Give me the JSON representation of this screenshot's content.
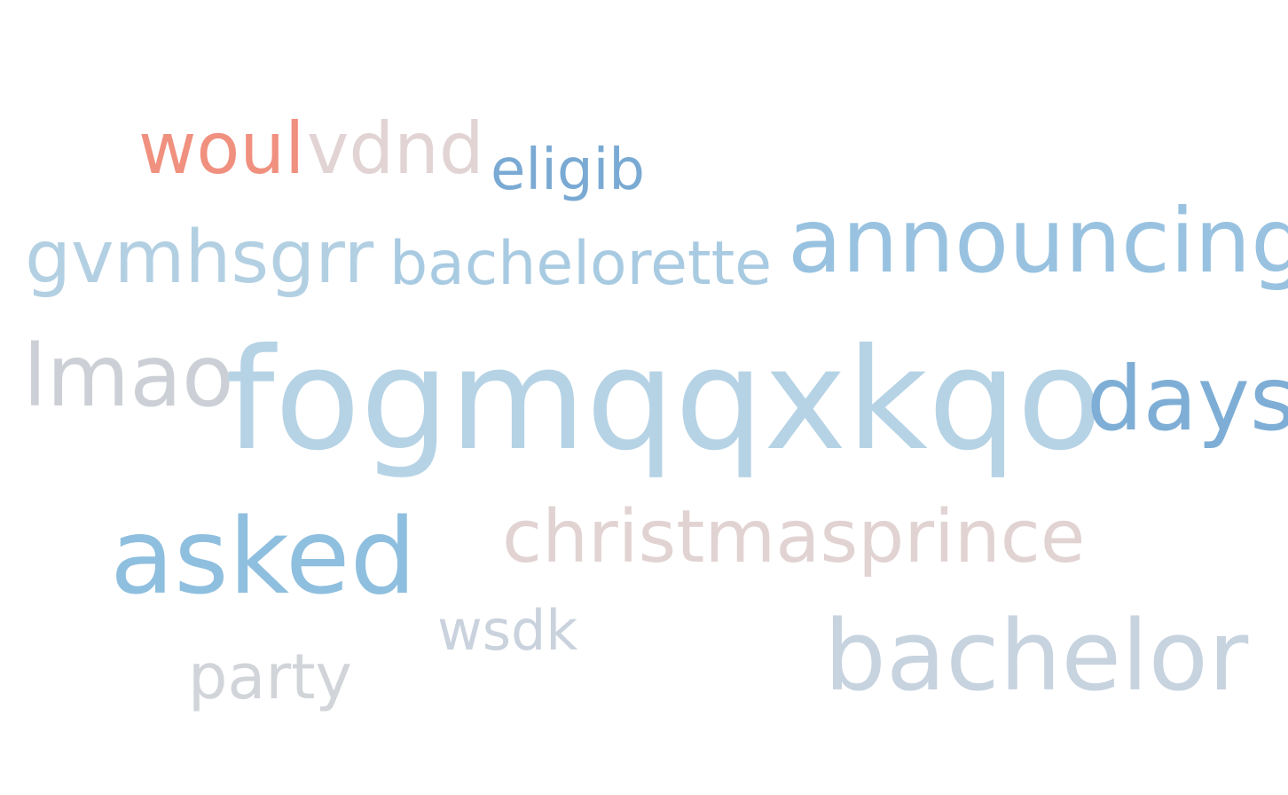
{
  "words": [
    {
      "id": "woul",
      "text": "woul",
      "color": "#f0907f"
    },
    {
      "id": "vdnd",
      "text": "vdnd",
      "color": "#e2d4d4"
    },
    {
      "id": "eligib",
      "text": "eligib",
      "color": "#7aaad3"
    },
    {
      "id": "gvmhsgrr",
      "text": "gvmhsgrr",
      "color": "#b3d0e3"
    },
    {
      "id": "bachelorette",
      "text": "bachelorette",
      "color": "#a9cbe2"
    },
    {
      "id": "announcing",
      "text": "announcing",
      "color": "#98c2e0"
    },
    {
      "id": "lmao",
      "text": "lmao",
      "color": "#ccd0d6"
    },
    {
      "id": "fogmqqxkqo",
      "text": "fogmqqxkqo",
      "color": "#b6d3e5"
    },
    {
      "id": "days",
      "text": "days",
      "color": "#7eaed5"
    },
    {
      "id": "christmasprince",
      "text": "christmasprince",
      "color": "#e2d3d3"
    },
    {
      "id": "asked",
      "text": "asked",
      "color": "#8fbfdf"
    },
    {
      "id": "wsdk",
      "text": "wsdk",
      "color": "#c9d2dd"
    },
    {
      "id": "bachelor",
      "text": "bachelor",
      "color": "#c7d3df"
    },
    {
      "id": "party",
      "text": "party",
      "color": "#d1d4d9"
    }
  ]
}
